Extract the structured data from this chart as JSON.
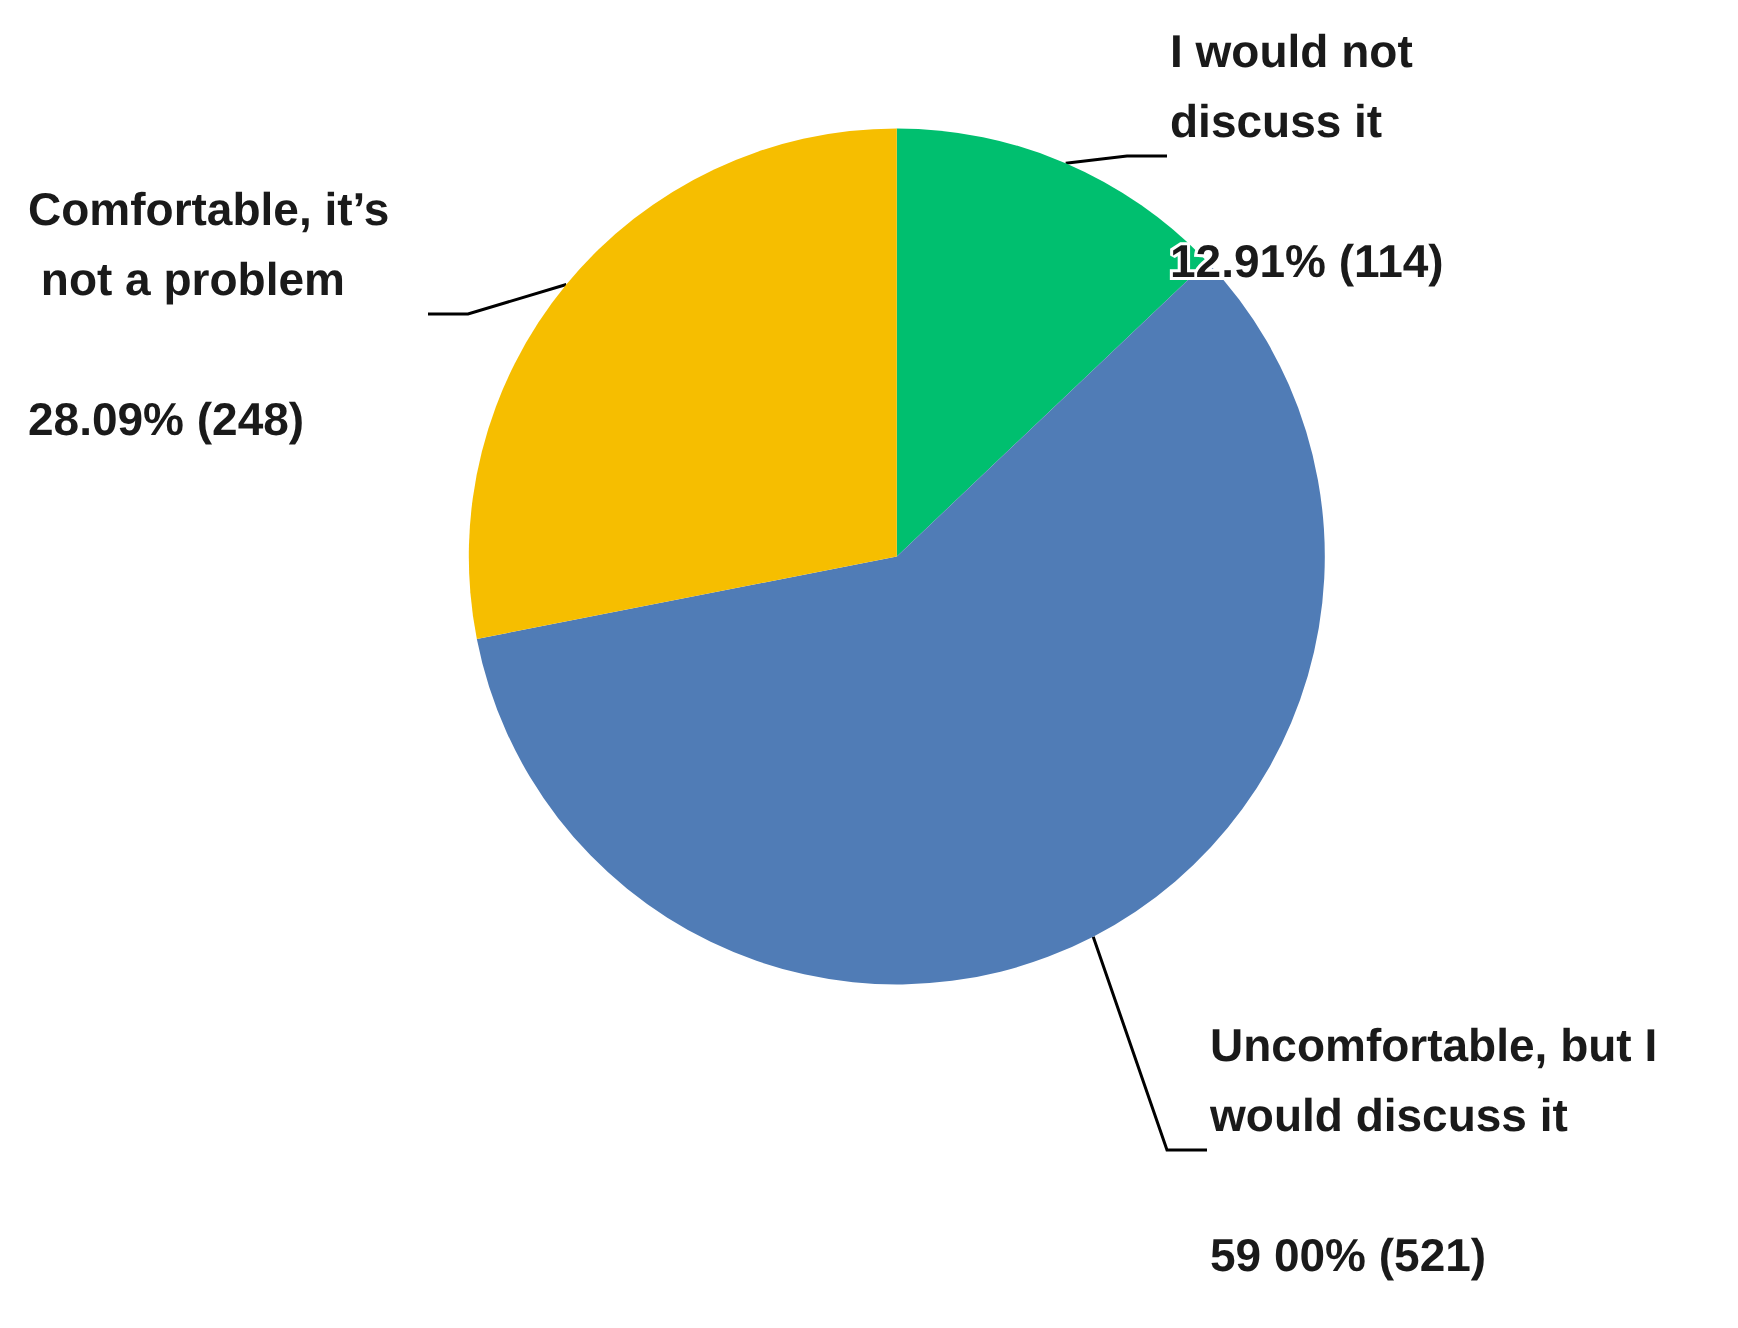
{
  "chart_data": {
    "type": "pie",
    "categories": [
      "I would not discuss it",
      "Uncomfortable, but I would discuss it",
      "Comfortable, it’s not a problem"
    ],
    "values": [
      114,
      521,
      248
    ],
    "value_labels": [
      "12.91% (114)",
      "59 00% (521)",
      "28.09% (248)"
    ],
    "colors": [
      "#00bf6f",
      "#507cb6",
      "#f6be00"
    ],
    "legend": false
  }
}
